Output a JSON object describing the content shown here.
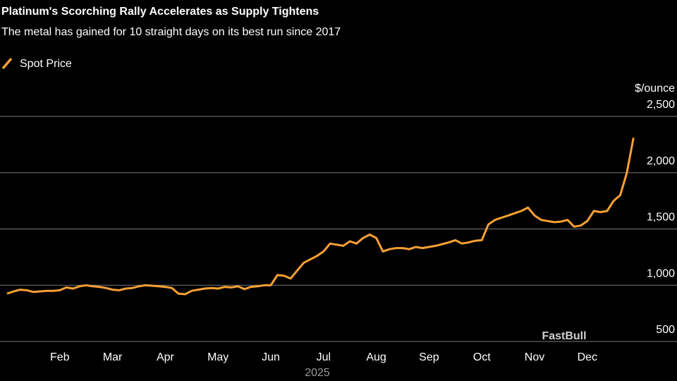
{
  "chart_data": {
    "type": "line",
    "title": "Platinum's Scorching Rally Accelerates as Supply Tightens",
    "subtitle": "The metal has gained for 10 straight days on its best run since 2017",
    "y_unit": "$/ounce",
    "x_year_label": "2025",
    "watermark": "FastBull",
    "categories": [
      null,
      null,
      null,
      null,
      null,
      null,
      null,
      null,
      "Feb",
      null,
      null,
      null,
      null,
      null,
      null,
      null,
      "Mar",
      null,
      null,
      null,
      null,
      null,
      null,
      null,
      "Apr",
      null,
      null,
      null,
      null,
      null,
      null,
      null,
      "May",
      null,
      null,
      null,
      null,
      null,
      null,
      null,
      "Jun",
      null,
      null,
      null,
      null,
      null,
      null,
      null,
      "Jul",
      null,
      null,
      null,
      null,
      null,
      null,
      null,
      "Aug",
      null,
      null,
      null,
      null,
      null,
      null,
      null,
      "Sep",
      null,
      null,
      null,
      null,
      null,
      null,
      null,
      "Oct",
      null,
      null,
      null,
      null,
      null,
      null,
      null,
      "Nov",
      null,
      null,
      null,
      null,
      null,
      null,
      null,
      "Dec",
      null,
      null,
      null,
      null,
      null,
      null,
      null
    ],
    "series": [
      {
        "name": "Spot Price",
        "color": "#f7a035",
        "values": [
          925,
          945,
          960,
          955,
          940,
          945,
          950,
          950,
          955,
          980,
          970,
          990,
          1000,
          990,
          985,
          975,
          960,
          955,
          970,
          975,
          990,
          1000,
          995,
          990,
          985,
          975,
          925,
          920,
          950,
          960,
          970,
          975,
          970,
          985,
          980,
          990,
          965,
          985,
          990,
          1000,
          1000,
          1090,
          1085,
          1060,
          1130,
          1200,
          1230,
          1260,
          1300,
          1370,
          1360,
          1350,
          1390,
          1370,
          1420,
          1450,
          1420,
          1300,
          1320,
          1330,
          1330,
          1320,
          1340,
          1330,
          1340,
          1350,
          1365,
          1380,
          1400,
          1370,
          1380,
          1395,
          1400,
          1540,
          1580,
          1600,
          1620,
          1640,
          1660,
          1690,
          1620,
          1580,
          1570,
          1560,
          1565,
          1580,
          1520,
          1530,
          1570,
          1660,
          1650,
          1660,
          1750,
          1800,
          2000,
          2310
        ]
      }
    ],
    "ylim": [
      500,
      2500
    ],
    "yticks": [
      500,
      {
        "value": 1000,
        "label": "1,000"
      },
      {
        "value": 1500,
        "label": "1,500"
      },
      {
        "value": 2000,
        "label": "2,000"
      },
      {
        "value": 2500,
        "label": "2,500"
      }
    ],
    "grid": true
  }
}
